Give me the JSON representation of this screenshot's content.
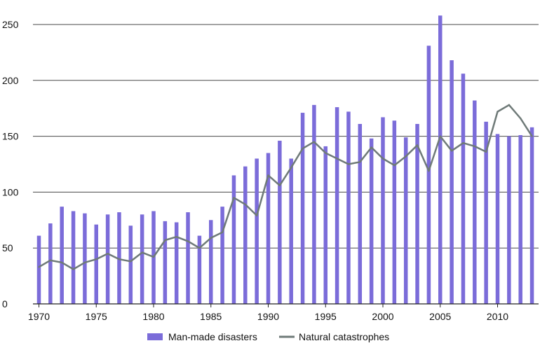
{
  "chart_data": {
    "type": "bar",
    "x": [
      1970,
      1971,
      1972,
      1973,
      1974,
      1975,
      1976,
      1977,
      1978,
      1979,
      1980,
      1981,
      1982,
      1983,
      1984,
      1985,
      1986,
      1987,
      1988,
      1989,
      1990,
      1991,
      1992,
      1993,
      1994,
      1995,
      1996,
      1997,
      1998,
      1999,
      2000,
      2001,
      2002,
      2003,
      2004,
      2005,
      2006,
      2007,
      2008,
      2009,
      2010,
      2011,
      2012,
      2013
    ],
    "series": [
      {
        "name": "Man-made disasters",
        "type": "bar",
        "color": "#7b6cd9",
        "values": [
          61,
          72,
          87,
          83,
          81,
          71,
          80,
          82,
          70,
          80,
          83,
          74,
          73,
          82,
          61,
          75,
          87,
          115,
          123,
          130,
          135,
          146,
          130,
          171,
          178,
          141,
          176,
          172,
          161,
          148,
          167,
          164,
          149,
          161,
          231,
          258,
          218,
          206,
          182,
          163,
          152,
          150,
          151,
          158
        ]
      },
      {
        "name": "Natural catastrophes",
        "type": "line",
        "color": "#6f7a78",
        "values": [
          33,
          39,
          37,
          31,
          37,
          40,
          45,
          40,
          38,
          46,
          42,
          57,
          60,
          56,
          50,
          59,
          64,
          95,
          89,
          79,
          115,
          106,
          122,
          139,
          145,
          135,
          130,
          125,
          127,
          140,
          130,
          124,
          132,
          142,
          119,
          150,
          137,
          144,
          141,
          136,
          172,
          178,
          166,
          150
        ]
      }
    ],
    "ylim": [
      0,
      260
    ],
    "yticks": [
      0,
      50,
      100,
      150,
      200,
      250
    ],
    "xticks": [
      1970,
      1975,
      1980,
      1985,
      1990,
      1995,
      2000,
      2005,
      2010
    ],
    "grid": "horizontal",
    "legend_position": "bottom-center",
    "title": "",
    "xlabel": "",
    "ylabel": ""
  }
}
